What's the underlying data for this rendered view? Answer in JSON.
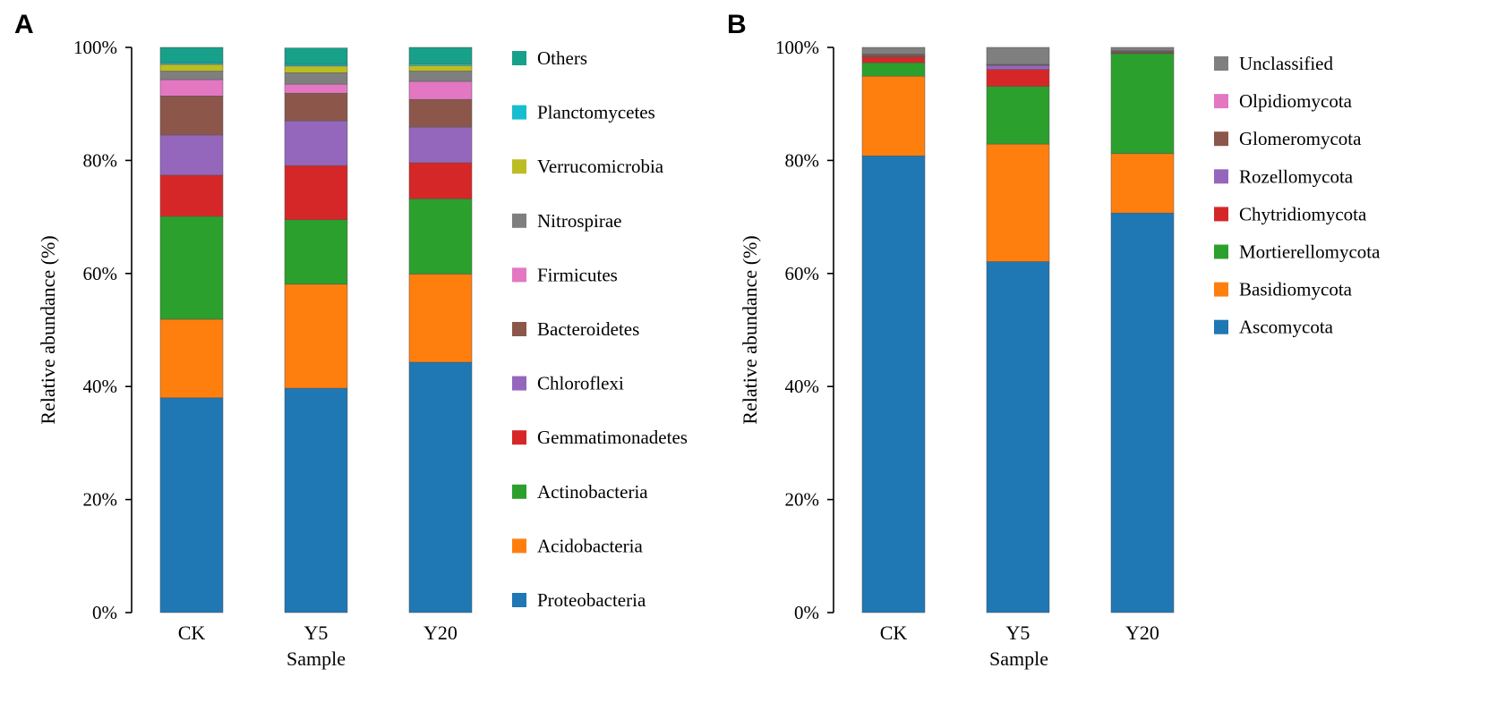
{
  "chart_data": [
    {
      "panel": "A",
      "type": "bar",
      "stacked": true,
      "xlabel": "Sample",
      "ylabel": "Relative abundance (%)",
      "ylim": [
        0,
        100
      ],
      "yticks": [
        "0%",
        "20%",
        "40%",
        "60%",
        "80%",
        "100%"
      ],
      "categories": [
        "CK",
        "Y5",
        "Y20"
      ],
      "series": [
        {
          "name": "Proteobacteria",
          "color": "#1f77b4",
          "values": [
            38.0,
            39.7,
            44.3
          ]
        },
        {
          "name": "Acidobacteria",
          "color": "#ff7f0e",
          "values": [
            13.9,
            18.4,
            15.6
          ]
        },
        {
          "name": "Actinobacteria",
          "color": "#2ca02c",
          "values": [
            18.2,
            11.4,
            13.3
          ]
        },
        {
          "name": "Gemmatimonadetes",
          "color": "#d62728",
          "values": [
            7.3,
            9.6,
            6.4
          ]
        },
        {
          "name": "Chloroflexi",
          "color": "#9467bd",
          "values": [
            7.1,
            7.9,
            6.3
          ]
        },
        {
          "name": "Bacteroidetes",
          "color": "#8c564b",
          "values": [
            6.9,
            4.9,
            4.9
          ]
        },
        {
          "name": "Firmicutes",
          "color": "#e377c2",
          "values": [
            2.9,
            1.6,
            3.2
          ]
        },
        {
          "name": "Nitrospirae",
          "color": "#7f7f7f",
          "values": [
            1.5,
            2.0,
            1.8
          ]
        },
        {
          "name": "Verrucomicrobia",
          "color": "#bcbd22",
          "values": [
            1.2,
            1.2,
            1.0
          ]
        },
        {
          "name": "Planctomycetes",
          "color": "#17becf",
          "values": [
            0.3,
            0.3,
            0.3
          ]
        },
        {
          "name": "Others",
          "color": "#17a08a",
          "values": [
            2.7,
            2.9,
            2.9
          ]
        }
      ],
      "legend_order": [
        "Others",
        "Planctomycetes",
        "Verrucomicrobia",
        "Nitrospirae",
        "Firmicutes",
        "Bacteroidetes",
        "Chloroflexi",
        "Gemmatimonadetes",
        "Actinobacteria",
        "Acidobacteria",
        "Proteobacteria"
      ]
    },
    {
      "panel": "B",
      "type": "bar",
      "stacked": true,
      "xlabel": "Sample",
      "ylabel": "Relative abundance (%)",
      "ylim": [
        0,
        100
      ],
      "yticks": [
        "0%",
        "20%",
        "40%",
        "60%",
        "80%",
        "100%"
      ],
      "categories": [
        "CK",
        "Y5",
        "Y20"
      ],
      "series": [
        {
          "name": "Ascomycota",
          "color": "#1f77b4",
          "values": [
            80.8,
            62.1,
            70.7
          ]
        },
        {
          "name": "Basidiomycota",
          "color": "#ff7f0e",
          "values": [
            14.1,
            20.8,
            10.5
          ]
        },
        {
          "name": "Mortierellomycota",
          "color": "#2ca02c",
          "values": [
            2.4,
            10.2,
            17.7
          ]
        },
        {
          "name": "Chytridiomycota",
          "color": "#d62728",
          "values": [
            1.0,
            3.0,
            0.1
          ]
        },
        {
          "name": "Rozellomycota",
          "color": "#9467bd",
          "values": [
            0.1,
            0.7,
            0.1
          ]
        },
        {
          "name": "Glomeromycota",
          "color": "#8c564b",
          "values": [
            0.3,
            0.1,
            0.2
          ]
        },
        {
          "name": "Olpidiomycota",
          "color": "#e377c2",
          "values": [
            0.1,
            0.1,
            0.1
          ]
        },
        {
          "name": "Unclassified",
          "color": "#7f7f7f",
          "values": [
            1.2,
            3.0,
            0.6
          ]
        }
      ],
      "legend_order": [
        "Unclassified",
        "Olpidiomycota",
        "Glomeromycota",
        "Rozellomycota",
        "Chytridiomycota",
        "Mortierellomycota",
        "Basidiomycota",
        "Ascomycota"
      ]
    }
  ]
}
